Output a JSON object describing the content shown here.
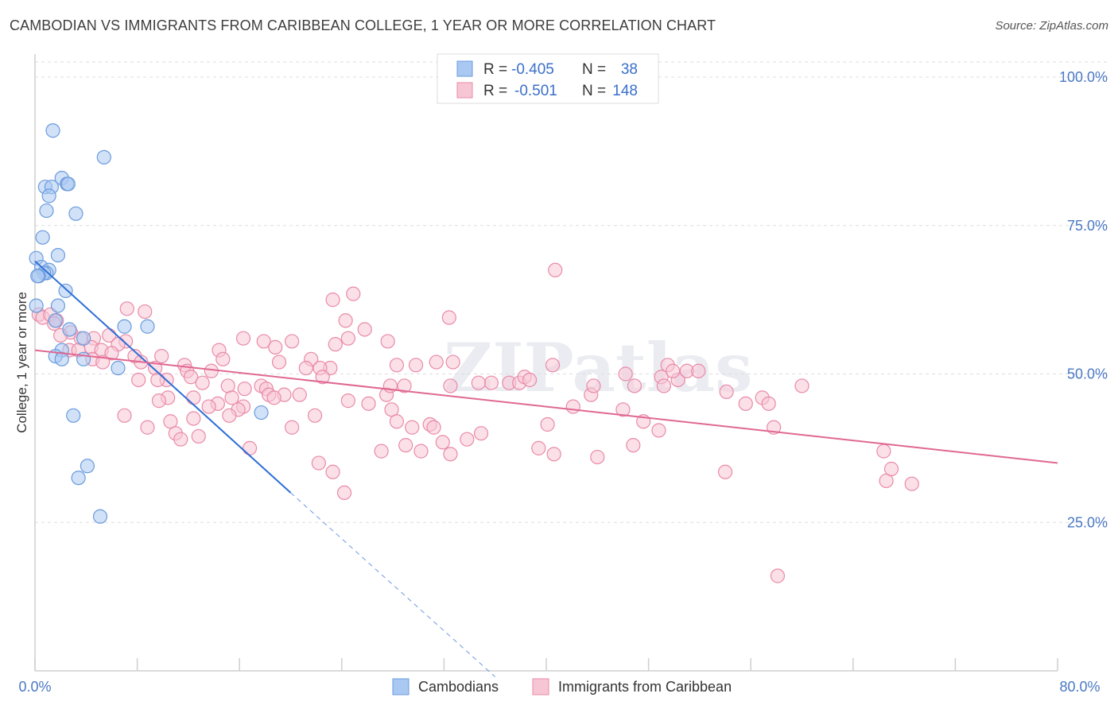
{
  "title": "CAMBODIAN VS IMMIGRANTS FROM CARIBBEAN COLLEGE, 1 YEAR OR MORE CORRELATION CHART",
  "source": "Source: ZipAtlas.com",
  "watermark": "ZIPatlas",
  "colors": {
    "blue_fill": "#a9c8f2",
    "blue_stroke": "#6b9bdc",
    "blue_line": "#2d6fd6",
    "pink_fill": "#f7c6d5",
    "pink_stroke": "#e98aa8",
    "pink_line": "#e06892",
    "axis_label": "#4a78c4"
  },
  "legend": {
    "r_label": "R =",
    "n_label": "N =",
    "rows": [
      {
        "r": "-0.405",
        "n": "38",
        "color": "blue"
      },
      {
        "r": "-0.501",
        "n": "148",
        "color": "pink"
      }
    ]
  },
  "bottom_legend": [
    "Cambodians",
    "Immigrants from Caribbean"
  ],
  "chart_data": {
    "type": "scatter",
    "title": "CAMBODIAN VS IMMIGRANTS FROM CARIBBEAN COLLEGE, 1 YEAR OR MORE CORRELATION CHART",
    "xlabel": "",
    "ylabel": "College, 1 year or more",
    "xlim": [
      0,
      80
    ],
    "ylim": [
      0,
      100
    ],
    "x_tick_labels": [
      "0.0%",
      "80.0%"
    ],
    "y_tick_labels": [
      "100.0%",
      "75.0%",
      "50.0%",
      "25.0%"
    ],
    "y_ticks": [
      100,
      75,
      50,
      25
    ],
    "grid": true,
    "legend_placement": "top-center",
    "series": [
      {
        "name": "Cambodians",
        "color": "blue",
        "r": -0.405,
        "n": 38,
        "trend": {
          "x0": 0,
          "y0": 69,
          "x1": 20,
          "y1": 30,
          "dash_x1": 36,
          "dash_y1": -1
        },
        "points": [
          [
            1.4,
            91
          ],
          [
            5.4,
            86.5
          ],
          [
            2.1,
            83
          ],
          [
            2.5,
            82
          ],
          [
            0.8,
            81.5
          ],
          [
            1.3,
            81.5
          ],
          [
            2.6,
            82
          ],
          [
            1.1,
            80
          ],
          [
            0.9,
            77.5
          ],
          [
            3.2,
            77
          ],
          [
            0.6,
            73
          ],
          [
            1.8,
            70
          ],
          [
            0.1,
            69.5
          ],
          [
            0.5,
            68
          ],
          [
            1.1,
            67.5
          ],
          [
            0.9,
            67
          ],
          [
            0.7,
            67
          ],
          [
            0.3,
            66.5
          ],
          [
            0.2,
            66.5
          ],
          [
            2.4,
            64
          ],
          [
            0.1,
            61.5
          ],
          [
            1.8,
            61.5
          ],
          [
            1.6,
            59
          ],
          [
            7,
            58
          ],
          [
            8.8,
            58
          ],
          [
            2.7,
            57.5
          ],
          [
            3.8,
            56
          ],
          [
            2.1,
            54
          ],
          [
            1.6,
            53
          ],
          [
            2.1,
            52.5
          ],
          [
            3.8,
            52.5
          ],
          [
            6.5,
            51
          ],
          [
            3,
            43
          ],
          [
            17.7,
            43.5
          ],
          [
            4.1,
            34.5
          ],
          [
            3.4,
            32.5
          ],
          [
            5.1,
            26
          ]
        ]
      },
      {
        "name": "Immigrants from Caribbean",
        "color": "pink",
        "r": -0.501,
        "n": 148,
        "trend": {
          "x0": 0,
          "y0": 54,
          "x1": 80,
          "y1": 35
        },
        "points": [
          [
            0.3,
            60
          ],
          [
            0.6,
            59.5
          ],
          [
            1.2,
            60
          ],
          [
            1.7,
            59
          ],
          [
            1.5,
            58.5
          ],
          [
            2.8,
            57
          ],
          [
            2,
            56.5
          ],
          [
            3.6,
            56
          ],
          [
            4.6,
            56
          ],
          [
            5.8,
            56.5
          ],
          [
            7.1,
            55.5
          ],
          [
            6.5,
            55
          ],
          [
            4.4,
            54.5
          ],
          [
            5.2,
            54
          ],
          [
            2.7,
            54
          ],
          [
            3.4,
            54
          ],
          [
            6,
            53.5
          ],
          [
            7.8,
            53
          ],
          [
            9.9,
            53
          ],
          [
            4.5,
            52.5
          ],
          [
            5.3,
            52
          ],
          [
            8.3,
            52
          ],
          [
            11.7,
            51.5
          ],
          [
            9.4,
            51
          ],
          [
            11.9,
            50.5
          ],
          [
            13.8,
            50.5
          ],
          [
            12.2,
            49.5
          ],
          [
            10.3,
            49
          ],
          [
            8.1,
            49
          ],
          [
            9.6,
            49
          ],
          [
            13.1,
            48.5
          ],
          [
            15.1,
            48
          ],
          [
            17.7,
            48
          ],
          [
            16.4,
            47.5
          ],
          [
            18.1,
            47.5
          ],
          [
            18.3,
            46.5
          ],
          [
            19.5,
            46.5
          ],
          [
            20.7,
            46.5
          ],
          [
            15.4,
            46
          ],
          [
            12.4,
            46
          ],
          [
            10.4,
            46
          ],
          [
            18.7,
            46
          ],
          [
            9.7,
            45.5
          ],
          [
            14.3,
            45
          ],
          [
            16.3,
            44.5
          ],
          [
            13.6,
            44.5
          ],
          [
            15.9,
            44
          ],
          [
            12.4,
            42.5
          ],
          [
            10.6,
            42
          ],
          [
            15.2,
            43
          ],
          [
            21.9,
            43
          ],
          [
            8.8,
            41
          ],
          [
            7,
            43
          ],
          [
            11,
            40
          ],
          [
            12.8,
            39.5
          ],
          [
            11.4,
            39
          ],
          [
            16.8,
            37.5
          ],
          [
            20.1,
            41
          ],
          [
            22.2,
            35
          ],
          [
            23.3,
            33.5
          ],
          [
            24.2,
            30
          ],
          [
            26.1,
            45
          ],
          [
            24.5,
            45.5
          ],
          [
            27.5,
            46.5
          ],
          [
            27.8,
            48
          ],
          [
            28.9,
            48
          ],
          [
            27.9,
            44
          ],
          [
            27.1,
            37
          ],
          [
            28.3,
            42
          ],
          [
            29.5,
            41
          ],
          [
            29,
            38
          ],
          [
            30.2,
            37
          ],
          [
            30.9,
            41.5
          ],
          [
            31.2,
            41
          ],
          [
            31.9,
            38.5
          ],
          [
            32.5,
            36.5
          ],
          [
            33.8,
            39
          ],
          [
            34.9,
            40
          ],
          [
            35.7,
            48.5
          ],
          [
            37.1,
            48.5
          ],
          [
            37.9,
            48.5
          ],
          [
            38.3,
            49.5
          ],
          [
            38.7,
            49
          ],
          [
            39.4,
            37.5
          ],
          [
            40.6,
            36.5
          ],
          [
            40.1,
            41.5
          ],
          [
            40.5,
            51.5
          ],
          [
            42.1,
            44.5
          ],
          [
            43.5,
            46.5
          ],
          [
            44,
            36
          ],
          [
            43.7,
            48
          ],
          [
            46,
            44
          ],
          [
            46.9,
            48
          ],
          [
            46.2,
            50
          ],
          [
            46.8,
            38
          ],
          [
            47.6,
            42
          ],
          [
            48.8,
            40.5
          ],
          [
            49.5,
            51.5
          ],
          [
            49,
            49.5
          ],
          [
            50.3,
            49
          ],
          [
            49.2,
            48
          ],
          [
            49.9,
            50.5
          ],
          [
            51,
            50.5
          ],
          [
            51.9,
            50.5
          ],
          [
            54.1,
            47
          ],
          [
            54,
            33.5
          ],
          [
            55.6,
            45
          ],
          [
            56.9,
            46
          ],
          [
            57.4,
            45
          ],
          [
            57.8,
            41
          ],
          [
            58.1,
            16
          ],
          [
            60,
            48
          ],
          [
            66.4,
            37
          ],
          [
            66.6,
            32
          ],
          [
            67,
            34
          ],
          [
            68.6,
            31.5
          ],
          [
            23.5,
            55
          ],
          [
            20.1,
            55.5
          ],
          [
            17.9,
            55.5
          ],
          [
            18.8,
            54.5
          ],
          [
            16.3,
            56
          ],
          [
            14.4,
            54
          ],
          [
            14.7,
            52.5
          ],
          [
            19.1,
            52
          ],
          [
            21.6,
            52.5
          ],
          [
            21.2,
            51
          ],
          [
            23.1,
            51
          ],
          [
            22.3,
            51
          ],
          [
            22.5,
            49.5
          ],
          [
            23.3,
            62.5
          ],
          [
            24.9,
            63.5
          ],
          [
            24.3,
            59
          ],
          [
            25.8,
            57.5
          ],
          [
            24.5,
            56
          ],
          [
            27.6,
            55.5
          ],
          [
            28.3,
            51.5
          ],
          [
            29.8,
            51.5
          ],
          [
            31.4,
            52
          ],
          [
            32.7,
            52
          ],
          [
            32.5,
            48
          ],
          [
            34.7,
            48.5
          ],
          [
            32.4,
            59.5
          ],
          [
            40.7,
            67.5
          ],
          [
            8.6,
            60.5
          ],
          [
            7.2,
            61
          ]
        ]
      }
    ]
  }
}
